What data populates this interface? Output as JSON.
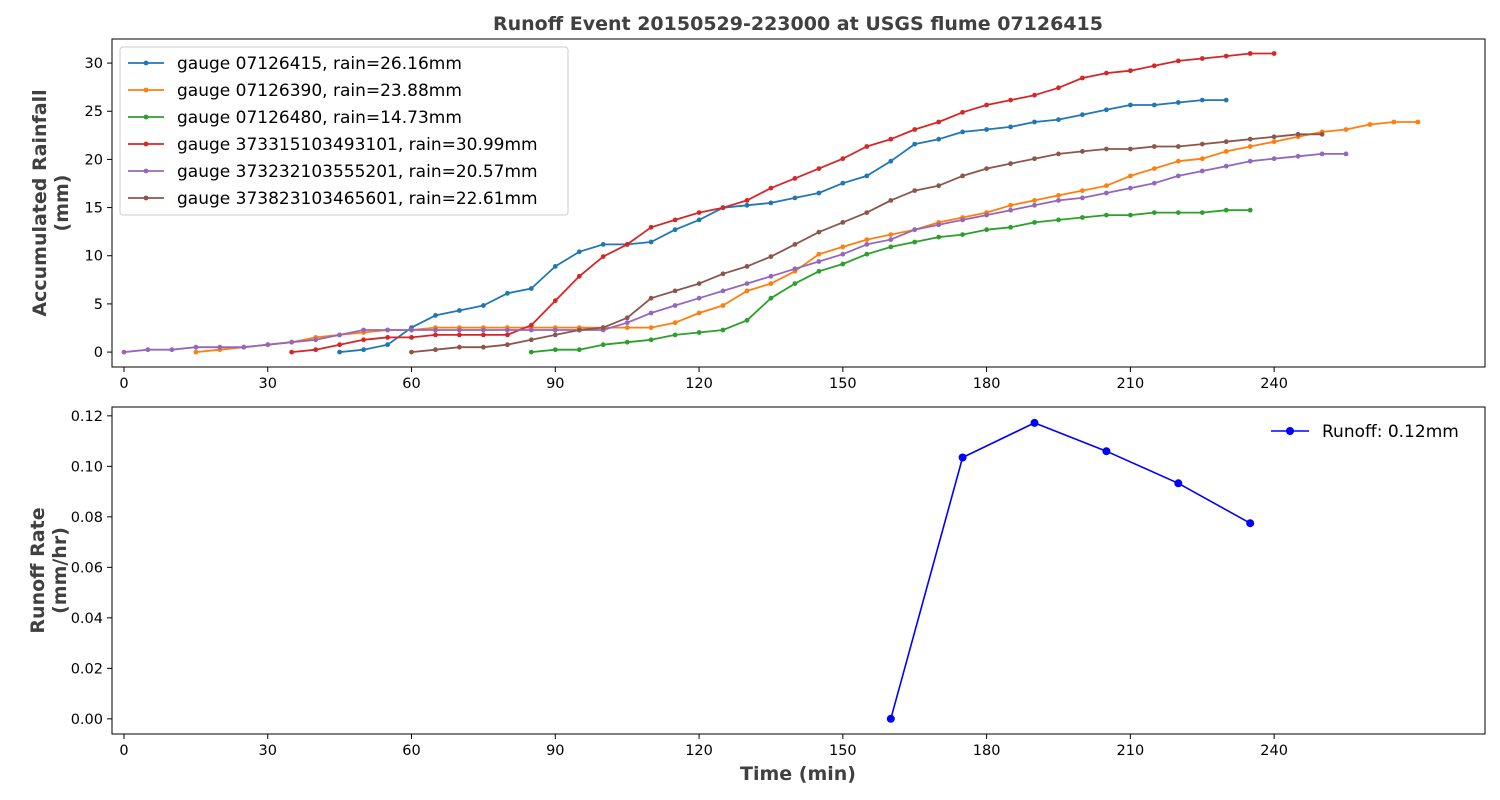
{
  "chart_data": [
    {
      "type": "line",
      "title": "Runoff Event 20150529-223000 at USGS flume 07126415",
      "ylabel": [
        "Accumulated Rainfall",
        "(mm)"
      ],
      "xlabel": "",
      "xlim": [
        -2.5,
        284
      ],
      "ylim": [
        -1.55,
        32.5
      ],
      "xticks": [
        0,
        30,
        60,
        90,
        120,
        150,
        180,
        210,
        240
      ],
      "yticks": [
        0,
        5,
        10,
        15,
        20,
        25,
        30
      ],
      "grid": false,
      "legend_position": "top-left",
      "series": [
        {
          "name": "gauge 07126415, rain=26.16mm",
          "color": "#1f77b4",
          "x": [
            45,
            50,
            55,
            60,
            65,
            70,
            75,
            80,
            85,
            90,
            95,
            100,
            105,
            110,
            115,
            120,
            125,
            130,
            135,
            140,
            145,
            150,
            155,
            160,
            165,
            170,
            175,
            180,
            185,
            190,
            195,
            200,
            205,
            210,
            215,
            220,
            225,
            230
          ],
          "y": [
            0,
            0.25,
            0.76,
            2.54,
            3.81,
            4.32,
            4.83,
            6.1,
            6.6,
            8.89,
            10.41,
            11.18,
            11.18,
            11.43,
            12.7,
            13.72,
            14.99,
            15.24,
            15.49,
            16,
            16.51,
            17.53,
            18.29,
            19.81,
            21.59,
            22.1,
            22.86,
            23.11,
            23.37,
            23.88,
            24.13,
            24.64,
            25.15,
            25.65,
            25.65,
            25.91,
            26.16,
            26.16
          ]
        },
        {
          "name": "gauge 07126390, rain=23.88mm",
          "color": "#ff7f0e",
          "x": [
            15,
            20,
            25,
            30,
            35,
            40,
            45,
            50,
            55,
            60,
            65,
            70,
            75,
            80,
            85,
            90,
            95,
            100,
            105,
            110,
            115,
            120,
            125,
            130,
            135,
            140,
            145,
            150,
            155,
            160,
            165,
            170,
            175,
            180,
            185,
            190,
            195,
            200,
            205,
            210,
            215,
            220,
            225,
            230,
            235,
            240,
            245,
            250,
            255,
            260,
            265,
            270
          ],
          "y": [
            0,
            0.25,
            0.51,
            0.76,
            1.02,
            1.52,
            1.78,
            2.03,
            2.29,
            2.29,
            2.54,
            2.54,
            2.54,
            2.54,
            2.54,
            2.54,
            2.54,
            2.54,
            2.54,
            2.54,
            3.05,
            4.06,
            4.83,
            6.35,
            7.11,
            8.38,
            10.16,
            10.92,
            11.68,
            12.19,
            12.7,
            13.46,
            13.97,
            14.48,
            15.24,
            15.75,
            16.26,
            16.76,
            17.27,
            18.29,
            19.05,
            19.81,
            20.07,
            20.83,
            21.34,
            21.84,
            22.35,
            22.86,
            23.11,
            23.62,
            23.88,
            23.88
          ]
        },
        {
          "name": "gauge 07126480, rain=14.73mm",
          "color": "#2ca02c",
          "x": [
            85,
            90,
            95,
            100,
            105,
            110,
            115,
            120,
            125,
            130,
            135,
            140,
            145,
            150,
            155,
            160,
            165,
            170,
            175,
            180,
            185,
            190,
            195,
            200,
            205,
            210,
            215,
            220,
            225,
            230,
            235
          ],
          "y": [
            0,
            0.25,
            0.25,
            0.76,
            1.02,
            1.27,
            1.78,
            2.03,
            2.29,
            3.3,
            5.59,
            7.11,
            8.38,
            9.14,
            10.16,
            10.92,
            11.43,
            11.94,
            12.19,
            12.7,
            12.95,
            13.46,
            13.72,
            13.97,
            14.22,
            14.22,
            14.48,
            14.48,
            14.48,
            14.73,
            14.73
          ]
        },
        {
          "name": "gauge 373315103493101, rain=30.99mm",
          "color": "#d62728",
          "x": [
            35,
            40,
            45,
            50,
            55,
            60,
            65,
            70,
            75,
            80,
            85,
            90,
            95,
            100,
            105,
            110,
            115,
            120,
            125,
            130,
            135,
            140,
            145,
            150,
            155,
            160,
            165,
            170,
            175,
            180,
            185,
            190,
            195,
            200,
            205,
            210,
            215,
            220,
            225,
            230,
            235,
            240
          ],
          "y": [
            0,
            0.25,
            0.76,
            1.27,
            1.52,
            1.52,
            1.78,
            1.78,
            1.78,
            1.78,
            2.79,
            5.33,
            7.87,
            9.91,
            11.18,
            12.95,
            13.72,
            14.48,
            14.99,
            15.75,
            17.02,
            18.03,
            19.05,
            20.07,
            21.34,
            22.1,
            23.11,
            23.88,
            24.89,
            25.65,
            26.16,
            26.67,
            27.43,
            28.45,
            28.96,
            29.21,
            29.72,
            30.23,
            30.48,
            30.73,
            30.99,
            30.99
          ]
        },
        {
          "name": "gauge 373232103555201, rain=20.57mm",
          "color": "#9467bd",
          "x": [
            0,
            5,
            10,
            15,
            20,
            25,
            30,
            35,
            40,
            45,
            50,
            55,
            60,
            65,
            70,
            75,
            80,
            85,
            90,
            95,
            100,
            105,
            110,
            115,
            120,
            125,
            130,
            135,
            140,
            145,
            150,
            155,
            160,
            165,
            170,
            175,
            180,
            185,
            190,
            195,
            200,
            205,
            210,
            215,
            220,
            225,
            230,
            235,
            240,
            245,
            250,
            255
          ],
          "y": [
            0,
            0.25,
            0.25,
            0.51,
            0.51,
            0.51,
            0.76,
            1.02,
            1.27,
            1.78,
            2.29,
            2.29,
            2.29,
            2.29,
            2.29,
            2.29,
            2.29,
            2.29,
            2.29,
            2.29,
            2.29,
            3.05,
            4.06,
            4.83,
            5.59,
            6.35,
            7.11,
            7.87,
            8.64,
            9.4,
            10.16,
            11.18,
            11.68,
            12.7,
            13.21,
            13.72,
            14.22,
            14.73,
            15.24,
            15.75,
            16,
            16.51,
            17.02,
            17.53,
            18.29,
            18.8,
            19.3,
            19.81,
            20.07,
            20.32,
            20.57,
            20.57
          ]
        },
        {
          "name": "gauge 373823103465601, rain=22.61mm",
          "color": "#8c564b",
          "x": [
            60,
            65,
            70,
            75,
            80,
            85,
            90,
            95,
            100,
            105,
            110,
            115,
            120,
            125,
            130,
            135,
            140,
            145,
            150,
            155,
            160,
            165,
            170,
            175,
            180,
            185,
            190,
            195,
            200,
            205,
            210,
            215,
            220,
            225,
            230,
            235,
            240,
            245,
            250
          ],
          "y": [
            0,
            0.25,
            0.51,
            0.51,
            0.76,
            1.27,
            1.78,
            2.29,
            2.54,
            3.56,
            5.59,
            6.35,
            7.11,
            8.13,
            8.89,
            9.91,
            11.18,
            12.45,
            13.46,
            14.48,
            15.75,
            16.76,
            17.27,
            18.29,
            19.05,
            19.56,
            20.07,
            20.57,
            20.83,
            21.08,
            21.08,
            21.34,
            21.34,
            21.59,
            21.84,
            22.1,
            22.35,
            22.61,
            22.61
          ]
        }
      ]
    },
    {
      "type": "line",
      "title": "",
      "ylabel": [
        "Runoff Rate",
        "(mm/hr)"
      ],
      "xlabel": "Time (min)",
      "xlim": [
        -2.5,
        284
      ],
      "ylim": [
        -0.006,
        0.1235
      ],
      "xticks": [
        0,
        30,
        60,
        90,
        120,
        150,
        180,
        210,
        240
      ],
      "yticks": [
        "0.00",
        "0.02",
        "0.04",
        "0.06",
        "0.08",
        "0.10",
        "0.12"
      ],
      "grid": false,
      "legend_position": "top-right",
      "series": [
        {
          "name": "Runoff: 0.12mm",
          "color": "#0000ff",
          "x": [
            160,
            175,
            190,
            205,
            220,
            235
          ],
          "y": [
            0,
            0.1035,
            0.1172,
            0.106,
            0.0933,
            0.0775
          ]
        }
      ]
    }
  ]
}
